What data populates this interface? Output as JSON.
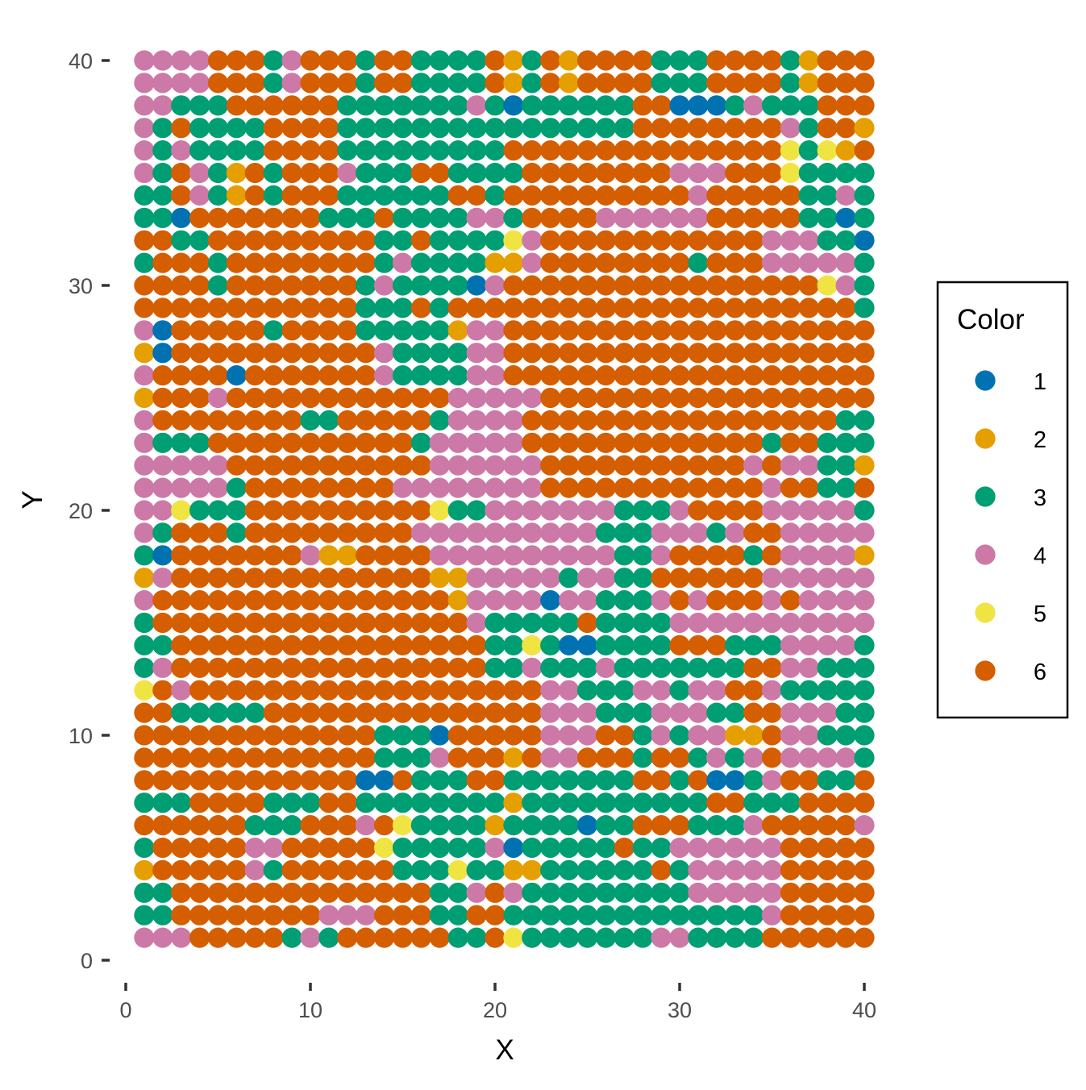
{
  "chart_data": {
    "type": "scatter",
    "title": "",
    "xlabel": "X",
    "ylabel": "Y",
    "xlim": [
      0,
      40
    ],
    "ylim": [
      0,
      40
    ],
    "xticks": [
      0,
      10,
      20,
      30,
      40
    ],
    "yticks": [
      0,
      10,
      20,
      30,
      40
    ],
    "grid": false,
    "legend": {
      "title": "Color",
      "placement": "right",
      "entries": [
        {
          "label": "1",
          "color": "#0072B2"
        },
        {
          "label": "2",
          "color": "#E69F00"
        },
        {
          "label": "3",
          "color": "#009E73"
        },
        {
          "label": "4",
          "color": "#CC79A7"
        },
        {
          "label": "5",
          "color": "#F0E442"
        },
        {
          "label": "6",
          "color": "#D55E00"
        }
      ]
    },
    "grid_points": {
      "x_values": [
        1,
        2,
        3,
        4,
        5,
        6,
        7,
        8,
        9,
        10,
        11,
        12,
        13,
        14,
        15,
        16,
        17,
        18,
        19,
        20,
        21,
        22,
        23,
        24,
        25,
        26,
        27,
        28,
        29,
        30,
        31,
        32,
        33,
        34,
        35,
        36,
        37,
        38,
        39,
        40
      ],
      "y_values_top_to_bottom": [
        40,
        39,
        38,
        37,
        36,
        35,
        34,
        33,
        32,
        31,
        30,
        29,
        28,
        27,
        26,
        25,
        24,
        23,
        22,
        21,
        20,
        19,
        18,
        17,
        16,
        15,
        14,
        13,
        12,
        11,
        10,
        9,
        8,
        7,
        6,
        5,
        4,
        3,
        2,
        1
      ],
      "color_rows": [
        "4444666346663663333623626666333666632666",
        "4444666346663663333623626666333666632666",
        "4433366666633333334313333336611134333666",
        "4363333666633333333333333336666666643662",
        "4343333666633333333366666666666666653526",
        "4364326366643336633336666666644466653333",
        "3364326366633333366366666666664666663343",
        "3316666666333633334436666444444666663313",
        "6633666666666336333354666666666666444331",
        "3666366666666343333224666666663666444443",
        "6666366666663433331466666666666666666543",
        "6666666666663336366666666666666666666663",
        "4166666366663333324466666666666666666666",
        "2166666666666433334466666666666666666666",
        "4666616666666433334466666666666666666666",
        "2666466666666666644444666666666666666666",
        "4666666663366666344446666666666666666633",
        "4333666666666663444446666666666666366333",
        "4444466666666666444444666666666664644332",
        "4444436666666644444444666666666666466336",
        "4453336666666666533444444433346666444443",
        "4366636666666664444444444333444346644444",
        "3166666664226666444444444433466663644442",
        "2466666666666666224444434433666666444444",
        "4666666666666666624444144333464666464444",
        "3666666666666666664333336333344444444444",
        "3366666666666666666335311333366633344443",
        "3466666666666666666334333433333336644333",
        "5646666666666666666666443334434466433333",
        "6633333666666666666666444333444336644433",
        "6666666666666333166666444663434422644333",
        "6666666666666333466626446663663434644443",
        "6666666666661163336633333336636113466336",
        "3336666333663333333323333333333663336666",
        "6666663336664653333233331336663334666664",
        "3666664466666533333413333363344444466666",
        "2666664366666633353322333333634444466666",
        "3366666666666666334643333333334444466666",
        "3366666666444666336633333333333333466666",
        "4446666634366666633653333333443333666666"
      ]
    },
    "point_color_key": {
      "1": "#0072B2",
      "2": "#E69F00",
      "3": "#009E73",
      "4": "#CC79A7",
      "5": "#F0E442",
      "6": "#D55E00"
    }
  }
}
